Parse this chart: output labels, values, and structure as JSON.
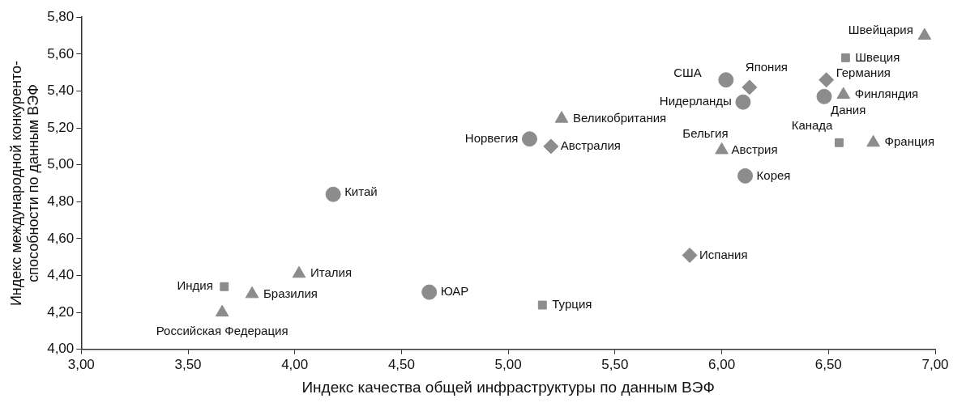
{
  "chart_data": {
    "type": "scatter",
    "xlabel": "Индекс качества общей инфраструктуры по данным ВЭФ",
    "ylabel": "Индекс международной конкуренто-\nспособности по данным ВЭФ",
    "xlim": [
      3,
      7
    ],
    "ylim": [
      4,
      5.8
    ],
    "xticks": [
      {
        "value": 3,
        "label": "3,00"
      },
      {
        "value": 3.5,
        "label": "3,50"
      },
      {
        "value": 4,
        "label": "4,00"
      },
      {
        "value": 4.5,
        "label": "4,50"
      },
      {
        "value": 5,
        "label": "5,00"
      },
      {
        "value": 5.5,
        "label": "5,50"
      },
      {
        "value": 6,
        "label": "6,00"
      },
      {
        "value": 6.5,
        "label": "6,50"
      },
      {
        "value": 7,
        "label": "7,00"
      }
    ],
    "yticks": [
      {
        "value": 4,
        "label": "4,00"
      },
      {
        "value": 4.2,
        "label": "4,20"
      },
      {
        "value": 4.4,
        "label": "4,40"
      },
      {
        "value": 4.6,
        "label": "4,60"
      },
      {
        "value": 4.8,
        "label": "4,80"
      },
      {
        "value": 5,
        "label": "5,00"
      },
      {
        "value": 5.2,
        "label": "5,20"
      },
      {
        "value": 5.4,
        "label": "5,40"
      },
      {
        "value": 5.6,
        "label": "5,60"
      },
      {
        "value": 5.8,
        "label": "5,80"
      }
    ],
    "grid": false,
    "legend": false,
    "series": [
      {
        "marker": "circle",
        "color": "#8c8c8c",
        "x": [
          6.48,
          6.02,
          6.1,
          5.1,
          6.11,
          4.18,
          4.63
        ],
        "values": [
          5.37,
          5.46,
          5.34,
          5.14,
          4.94,
          4.84,
          4.31
        ]
      },
      {
        "marker": "triangle",
        "color": "#8c8c8c",
        "x": [
          6.95,
          6.57,
          6.71,
          5.25,
          6.0,
          4.02,
          3.8,
          3.66
        ],
        "values": [
          5.7,
          5.38,
          5.12,
          5.25,
          5.08,
          4.41,
          4.3,
          4.2
        ]
      },
      {
        "marker": "square",
        "color": "#8c8c8c",
        "x": [
          6.58,
          6.55,
          3.67,
          5.16
        ],
        "values": [
          5.58,
          5.12,
          4.34,
          4.24
        ]
      },
      {
        "marker": "diamond",
        "color": "#8c8c8c",
        "x": [
          6.49,
          6.13,
          5.2,
          5.85
        ],
        "values": [
          5.46,
          5.42,
          5.1,
          4.51
        ]
      }
    ],
    "annotations": [
      {
        "text": "Швейцария",
        "x": 6.95,
        "y": 5.7
      },
      {
        "text": "Швеция",
        "x": 6.58,
        "y": 5.58
      },
      {
        "text": "Германия",
        "x": 6.49,
        "y": 5.46
      },
      {
        "text": "Финляндия",
        "x": 6.57,
        "y": 5.38
      },
      {
        "text": "Дания",
        "x": 6.48,
        "y": 5.37
      },
      {
        "text": "Канада",
        "x": 6.55,
        "y": 5.12
      },
      {
        "text": "Франция",
        "x": 6.71,
        "y": 5.12
      },
      {
        "text": "США",
        "x": 6.02,
        "y": 5.46
      },
      {
        "text": "Япония",
        "x": 6.13,
        "y": 5.42
      },
      {
        "text": "Нидерланды",
        "x": 6.1,
        "y": 5.34
      },
      {
        "text": "Великобритания",
        "x": 5.25,
        "y": 5.25
      },
      {
        "text": "Норвегия",
        "x": 5.1,
        "y": 5.14
      },
      {
        "text": "Австралия",
        "x": 5.2,
        "y": 5.1
      },
      {
        "text": "Бельгия",
        "x": 6.0,
        "y": 5.08
      },
      {
        "text": "Австрия",
        "x": 6.0,
        "y": 5.08
      },
      {
        "text": "Корея",
        "x": 6.11,
        "y": 4.94
      },
      {
        "text": "Китай",
        "x": 4.18,
        "y": 4.84
      },
      {
        "text": "Италия",
        "x": 4.02,
        "y": 4.41
      },
      {
        "text": "Индия",
        "x": 3.67,
        "y": 4.34
      },
      {
        "text": "Бразилия",
        "x": 3.8,
        "y": 4.3
      },
      {
        "text": "Российская Федерация",
        "x": 3.66,
        "y": 4.2
      },
      {
        "text": "ЮАР",
        "x": 4.63,
        "y": 4.31
      },
      {
        "text": "Турция",
        "x": 5.16,
        "y": 4.24
      },
      {
        "text": "Испания",
        "x": 5.85,
        "y": 4.51
      }
    ]
  }
}
